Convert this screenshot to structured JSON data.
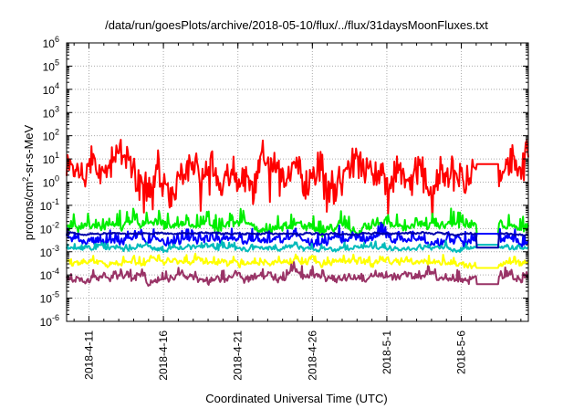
{
  "chart_data": {
    "type": "line",
    "title": "/data/run/goesPlots/archive/2018-05-10/flux/../flux/31daysMoonFluxes.txt",
    "xlabel": "Coordinated Universal Time (UTC)",
    "ylabel": "protons/cm2-sr-s-MeV",
    "ylabel_parts": {
      "main": "protons/cm",
      "sup": "2",
      "rest": "-sr-s-MeV"
    },
    "yscale": "log",
    "ylim": [
      1e-06,
      1000000.0
    ],
    "y_ticks": [
      {
        "exp": -6,
        "value": 1e-06
      },
      {
        "exp": -5,
        "value": 1e-05
      },
      {
        "exp": -4,
        "value": 0.0001
      },
      {
        "exp": -3,
        "value": 0.001
      },
      {
        "exp": -2,
        "value": 0.01
      },
      {
        "exp": -1,
        "value": 0.1
      },
      {
        "exp": 0,
        "value": 1
      },
      {
        "exp": 1,
        "value": 10
      },
      {
        "exp": 2,
        "value": 100
      },
      {
        "exp": 3,
        "value": 1000
      },
      {
        "exp": 4,
        "value": 10000
      },
      {
        "exp": 5,
        "value": 100000
      },
      {
        "exp": 6,
        "value": 1000000
      }
    ],
    "y_tick_base": "10",
    "xlim": [
      "2018-04-09T12:00",
      "2018-05-10T12:00"
    ],
    "x_tick_labels": [
      "2018-4-11",
      "2018-4-16",
      "2018-4-21",
      "2018-4-26",
      "2018-5-1",
      "2018-5-6"
    ],
    "x_ticks": [
      "2018-04-11",
      "2018-04-16",
      "2018-04-21",
      "2018-04-26",
      "2018-05-01",
      "2018-05-06"
    ],
    "grid": true,
    "data_gap": [
      "2018-05-07T00:00",
      "2018-05-08T12:00"
    ],
    "series": [
      {
        "color": "#ff0000",
        "baseline": 2.0,
        "spread_decades": 0.8,
        "spikes_decades": 0.55,
        "gap_value": 6.0,
        "gap_dip": 0.1
      },
      {
        "color": "#00ee00",
        "baseline": 0.012,
        "spread_decades": 0.22,
        "spikes_decades": 0.55,
        "gap_value": 0.006,
        "gap_dip": 0.0
      },
      {
        "color": "#0000ff",
        "baseline": 0.0035,
        "spread_decades": 0.2,
        "spikes_decades": 0.45,
        "gap_value": 0.006,
        "gap_dip": 0.0
      },
      {
        "color": "#00bbbb",
        "baseline": 0.0015,
        "spread_decades": 0.12,
        "spikes_decades": 0.2,
        "gap_value": 0.002,
        "gap_dip": 0.0
      },
      {
        "color": "#0000aa",
        "baseline": 0.006,
        "spread_decades": 0.05,
        "spikes_decades": 0.0,
        "gap_value": 0.0015,
        "gap_dip": 0.0
      },
      {
        "color": "#ffff00",
        "baseline": 0.00035,
        "spread_decades": 0.15,
        "spikes_decades": 0.25,
        "gap_value": 0.0002,
        "gap_dip": 0.0
      },
      {
        "color": "#993366",
        "baseline": 8e-05,
        "spread_decades": 0.2,
        "spikes_decades": 0.35,
        "gap_value": 4e-05,
        "gap_dip": 0.0
      }
    ]
  }
}
